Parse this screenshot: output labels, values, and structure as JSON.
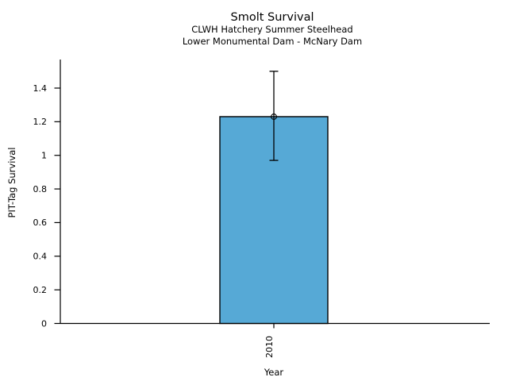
{
  "figure": {
    "background": "#FFFFFF"
  },
  "chart_data": {
    "type": "bar",
    "title": "Smolt Survival",
    "subtitle1": "CLWH Hatchery Summer Steelhead",
    "subtitle2": "Lower Monumental Dam - McNary Dam",
    "xlabel": "Year",
    "ylabel": "PIT-Tag Survival",
    "categories": [
      "2010"
    ],
    "values": [
      1.23
    ],
    "error_low": [
      0.97
    ],
    "error_high": [
      1.5
    ],
    "marker": "open-circle",
    "ylim": [
      0,
      1.5
    ],
    "yticks": [
      0,
      0.2,
      0.4,
      0.6,
      0.8,
      1,
      1.2,
      1.4
    ],
    "ytick_labels": [
      "0",
      "0.2",
      "0.4",
      "0.6",
      "0.8",
      "1",
      "1.2",
      "1.4"
    ],
    "x_tick_label_rotation": 90,
    "grid": "off",
    "legend": "none",
    "bar_color": "#56A9D6",
    "bar_edge_color": "#000000",
    "axis_color": "#000000",
    "text_color": "#000000"
  }
}
